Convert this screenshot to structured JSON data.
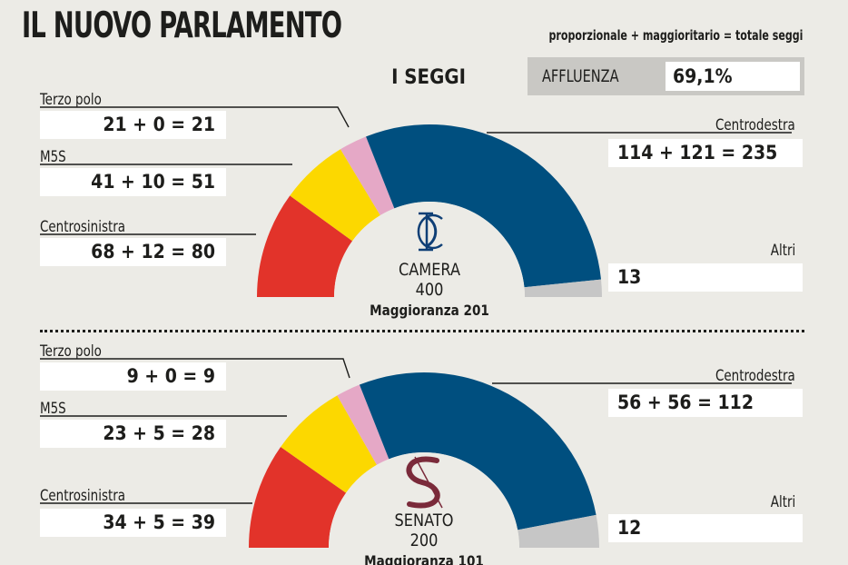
{
  "header": {
    "title": "IL NUOVO PARLAMENTO",
    "subtitle": "proporzionale + maggioritario = totale seggi",
    "section_title": "I SEGGI",
    "affluenza_label": "AFFLUENZA",
    "affluenza_value": "69,1%"
  },
  "colors": {
    "centrosinistra": "#e2332a",
    "m5s": "#fcd800",
    "terzo_polo": "#e5a8c6",
    "centrodestra": "#004f7f",
    "altri": "#c6c6c6",
    "inner": "#ecebe6"
  },
  "chart_data": [
    {
      "type": "pie",
      "chamber": "CAMERA",
      "total": "400",
      "majority": "Maggioranza 201",
      "total_seats": 400,
      "series": [
        {
          "name": "Centrosinistra",
          "key": "centrosinistra",
          "value": 80,
          "breakdown": "68 + 12 = 80"
        },
        {
          "name": "M5S",
          "key": "m5s",
          "value": 51,
          "breakdown": "41 + 10 = 51"
        },
        {
          "name": "Terzo polo",
          "key": "terzo_polo",
          "value": 21,
          "breakdown": "21 + 0 = 21"
        },
        {
          "name": "Centrodestra",
          "key": "centrodestra",
          "value": 235,
          "breakdown": "114 + 121 = 235"
        },
        {
          "name": "Altri",
          "key": "altri",
          "value": 13,
          "breakdown": "13"
        }
      ]
    },
    {
      "type": "pie",
      "chamber": "SENATO",
      "total": "200",
      "majority": "Maggioranza 101",
      "total_seats": 200,
      "series": [
        {
          "name": "Centrosinistra",
          "key": "centrosinistra",
          "value": 39,
          "breakdown": "34 + 5 = 39"
        },
        {
          "name": "M5S",
          "key": "m5s",
          "value": 28,
          "breakdown": "23 + 5 = 28"
        },
        {
          "name": "Terzo polo",
          "key": "terzo_polo",
          "value": 9,
          "breakdown": "9 + 0 = 9"
        },
        {
          "name": "Centrodestra",
          "key": "centrodestra",
          "value": 112,
          "breakdown": "56 + 56 = 112"
        },
        {
          "name": "Altri",
          "key": "altri",
          "value": 12,
          "breakdown": "12"
        }
      ]
    }
  ]
}
